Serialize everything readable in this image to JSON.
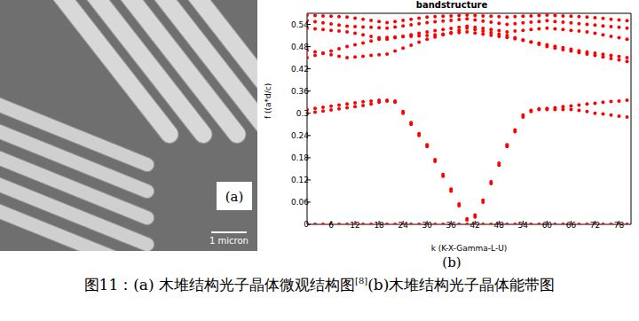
{
  "chart_data": {
    "type": "scatter",
    "title": "bandstructure",
    "x_label": "k (K-X-Gamma-L-U)",
    "y_label": "f ((a*d/c)",
    "marker": "circle",
    "grid": false,
    "xlim": [
      0,
      81
    ],
    "ylim": [
      0,
      0.57
    ],
    "xticks": [
      6,
      12,
      18,
      24,
      30,
      36,
      42,
      48,
      54,
      60,
      66,
      72,
      78
    ],
    "yticks": [
      0,
      0.06,
      0.12,
      0.18,
      0.24,
      0.3,
      0.36,
      0.42,
      0.48,
      0.54
    ],
    "x": [
      0,
      2,
      4,
      6,
      8,
      10,
      12,
      14,
      16,
      18,
      20,
      22,
      24,
      26,
      28,
      30,
      32,
      34,
      36,
      38,
      40,
      42,
      44,
      46,
      48,
      50,
      52,
      54,
      56,
      58,
      60,
      62,
      64,
      66,
      68,
      70,
      72,
      74,
      76,
      78,
      80
    ],
    "series": [
      {
        "color": "#ff0000",
        "values": [
          0,
          0,
          0,
          0,
          0,
          0,
          0,
          0,
          0,
          0,
          0,
          0,
          0,
          0,
          0,
          0,
          0,
          0,
          0,
          0,
          0,
          0,
          0,
          0,
          0,
          0,
          0,
          0,
          0,
          0,
          0,
          0,
          0,
          0,
          0,
          0,
          0,
          0,
          0,
          0,
          0
        ]
      },
      {
        "color": "#ff0000",
        "values": [
          0.3,
          0.303,
          0.306,
          0.309,
          0.312,
          0.315,
          0.318,
          0.321,
          0.325,
          0.33,
          0.333,
          0.33,
          0.3,
          0.27,
          0.24,
          0.21,
          0.17,
          0.13,
          0.09,
          0.05,
          0.012,
          0.02,
          0.06,
          0.11,
          0.16,
          0.21,
          0.25,
          0.29,
          0.305,
          0.31,
          0.31,
          0.31,
          0.31,
          0.31,
          0.308,
          0.305,
          0.3,
          0.298,
          0.295,
          0.292,
          0.29
        ]
      },
      {
        "color": "#ff0000",
        "values": [
          0.31,
          0.313,
          0.316,
          0.319,
          0.322,
          0.325,
          0.328,
          0.331,
          0.333,
          0.335,
          0.335,
          0.333,
          0.305,
          0.275,
          0.245,
          0.215,
          0.175,
          0.135,
          0.095,
          0.055,
          0.015,
          0.025,
          0.065,
          0.115,
          0.165,
          0.215,
          0.255,
          0.295,
          0.308,
          0.312,
          0.313,
          0.315,
          0.318,
          0.32,
          0.322,
          0.325,
          0.327,
          0.33,
          0.332,
          0.333,
          0.335
        ]
      },
      {
        "color": "#ff0000",
        "values": [
          0.45,
          0.456,
          0.462,
          0.468,
          0.474,
          0.48,
          0.485,
          0.49,
          0.495,
          0.5,
          0.505,
          0.506,
          0.507,
          0.508,
          0.509,
          0.51,
          0.512,
          0.514,
          0.516,
          0.518,
          0.52,
          0.517,
          0.514,
          0.511,
          0.508,
          0.505,
          0.501,
          0.497,
          0.493,
          0.489,
          0.485,
          0.481,
          0.477,
          0.473,
          0.469,
          0.465,
          0.462,
          0.459,
          0.456,
          0.453,
          0.45
        ]
      },
      {
        "color": "#ff0000",
        "values": [
          0.47,
          0.466,
          0.462,
          0.458,
          0.454,
          0.45,
          0.452,
          0.454,
          0.456,
          0.458,
          0.46,
          0.468,
          0.476,
          0.484,
          0.492,
          0.5,
          0.506,
          0.512,
          0.518,
          0.524,
          0.53,
          0.526,
          0.522,
          0.518,
          0.514,
          0.51,
          0.504,
          0.498,
          0.492,
          0.486,
          0.48,
          0.476,
          0.472,
          0.468,
          0.464,
          0.46,
          0.456,
          0.452,
          0.448,
          0.444,
          0.44
        ]
      },
      {
        "color": "#ff0000",
        "values": [
          0.53,
          0.528,
          0.526,
          0.524,
          0.522,
          0.52,
          0.516,
          0.512,
          0.508,
          0.504,
          0.5,
          0.504,
          0.508,
          0.512,
          0.516,
          0.52,
          0.523,
          0.526,
          0.529,
          0.532,
          0.535,
          0.532,
          0.529,
          0.526,
          0.523,
          0.52,
          0.522,
          0.524,
          0.526,
          0.528,
          0.53,
          0.528,
          0.526,
          0.524,
          0.522,
          0.52,
          0.516,
          0.512,
          0.508,
          0.504,
          0.5
        ]
      },
      {
        "color": "#ff0000",
        "values": [
          0.55,
          0.547,
          0.544,
          0.541,
          0.538,
          0.535,
          0.534,
          0.533,
          0.532,
          0.531,
          0.53,
          0.533,
          0.536,
          0.539,
          0.542,
          0.545,
          0.547,
          0.549,
          0.551,
          0.553,
          0.555,
          0.552,
          0.549,
          0.546,
          0.543,
          0.54,
          0.542,
          0.544,
          0.546,
          0.548,
          0.55,
          0.548,
          0.546,
          0.544,
          0.542,
          0.54,
          0.538,
          0.536,
          0.534,
          0.532,
          0.53
        ]
      },
      {
        "color": "#ff0000",
        "values": [
          0.565,
          0.564,
          0.563,
          0.562,
          0.561,
          0.56,
          0.557,
          0.554,
          0.551,
          0.548,
          0.545,
          0.548,
          0.551,
          0.554,
          0.557,
          0.56,
          0.561,
          0.562,
          0.563,
          0.564,
          0.565,
          0.564,
          0.563,
          0.562,
          0.561,
          0.56,
          0.561,
          0.562,
          0.563,
          0.564,
          0.565,
          0.564,
          0.563,
          0.562,
          0.561,
          0.56,
          0.558,
          0.556,
          0.554,
          0.552,
          0.55
        ]
      }
    ]
  },
  "panel_a": {
    "label": "(a)",
    "scale_bar": "1 micron"
  },
  "panel_b_label": "(b)",
  "caption": {
    "text_before": "图11：(a) 木堆结构光子晶体微观结构图",
    "ref": "[8]",
    "text_after": "(b)木堆结构光子晶体能带图"
  }
}
